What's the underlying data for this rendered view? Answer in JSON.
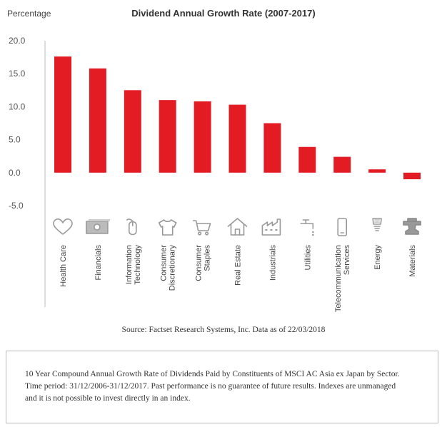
{
  "chart_data": {
    "type": "bar",
    "title": "Dividend Annual Growth Rate (2007-2017)",
    "ylabel": "Percentage",
    "xlabel": "",
    "ylim": [
      -5,
      20
    ],
    "yticks": [
      "20.0",
      "15.0",
      "10.0",
      "5.0",
      "0.0",
      "-5.0"
    ],
    "grid": false,
    "bar_color": "#e31b23",
    "categories": [
      {
        "label": [
          "Health Care"
        ],
        "icon": "heart-icon"
      },
      {
        "label": [
          "Financials"
        ],
        "icon": "banknote-icon"
      },
      {
        "label": [
          "Information",
          "Technology"
        ],
        "icon": "mouse-icon"
      },
      {
        "label": [
          "Consumer",
          "Discretionary"
        ],
        "icon": "tshirt-icon"
      },
      {
        "label": [
          "Consumer",
          "Staples"
        ],
        "icon": "shopping-cart-icon"
      },
      {
        "label": [
          "Real Estate"
        ],
        "icon": "house-icon"
      },
      {
        "label": [
          "Industrials"
        ],
        "icon": "factory-icon"
      },
      {
        "label": [
          "Utilities"
        ],
        "icon": "faucet-icon"
      },
      {
        "label": [
          "Telecommunication",
          "Services"
        ],
        "icon": "mobile-phone-icon"
      },
      {
        "label": [
          "Energy"
        ],
        "icon": "lightbulb-icon"
      },
      {
        "label": [
          "Materials"
        ],
        "icon": "anvil-icon"
      }
    ],
    "values": [
      17.6,
      15.8,
      12.5,
      11.0,
      10.8,
      10.3,
      7.5,
      3.9,
      2.4,
      0.5,
      -1.0
    ]
  },
  "source": "Source: Factset Research Systems, Inc. Data as of 22/03/2018",
  "note": [
    "10 Year Compound Annual Growth Rate of Dividends Paid by Constituents of MSCI AC Asia ex Japan by Sector.",
    "Time period: 31/12/2006-31/12/2017. Past performance is no guarantee of future results. Indexes are unmanaged",
    "and it is not possible to invest directly in an index."
  ]
}
